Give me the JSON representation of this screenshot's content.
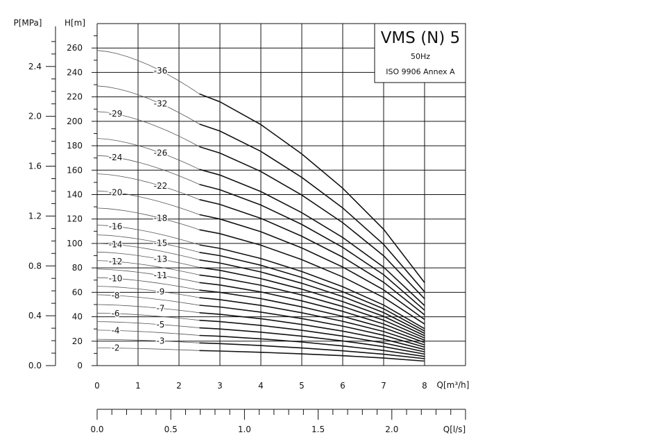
{
  "chart_data": {
    "type": "line",
    "title_box": {
      "model": "VMS (N) 5",
      "frequency": "50Hz",
      "standard": "ISO 9906 Annex A"
    },
    "axes": {
      "head": {
        "label": "H[m]",
        "range": [
          0,
          280
        ],
        "major_ticks": [
          0,
          20,
          40,
          60,
          80,
          100,
          120,
          140,
          160,
          180,
          200,
          220,
          240,
          260
        ]
      },
      "pressure": {
        "label": "P[MPa]",
        "range": [
          0,
          2.744
        ],
        "major_ticks": [
          "0.0",
          "0.4",
          "0.8",
          "1.2",
          "1.6",
          "2.0",
          "2.4"
        ]
      },
      "flow_m3h": {
        "label": "Q[m³/h]",
        "range": [
          0,
          9
        ],
        "major_ticks": [
          0,
          1,
          2,
          3,
          4,
          5,
          6,
          7,
          8
        ]
      },
      "flow_ls": {
        "label": "Q[l/s]",
        "range": [
          0,
          2.5
        ],
        "major_ticks": [
          "0.0",
          "0.5",
          "1.0",
          "1.5",
          "2.0"
        ]
      }
    },
    "grid": true,
    "x": [
      0,
      2.5,
      3,
      4,
      5,
      6,
      7,
      8
    ],
    "series": [
      {
        "name": "-2",
        "values": [
          14.5,
          12.3,
          11.9,
          10.9,
          9.6,
          8.1,
          6.2,
          3.7
        ]
      },
      {
        "name": "-3",
        "values": [
          21.5,
          18.6,
          18.0,
          16.4,
          14.4,
          12.1,
          9.3,
          5.7
        ]
      },
      {
        "name": "-4",
        "values": [
          29,
          24.7,
          24.0,
          21.9,
          19.3,
          16.1,
          12.4,
          7.5
        ]
      },
      {
        "name": "-5",
        "values": [
          36,
          30.9,
          30.0,
          27.4,
          24.1,
          20.2,
          15.5,
          9.4
        ]
      },
      {
        "name": "-6",
        "values": [
          43,
          37.1,
          36.0,
          32.9,
          28.9,
          24.2,
          18.6,
          11.3
        ]
      },
      {
        "name": "-7",
        "values": [
          50,
          43.3,
          42.0,
          38.4,
          33.7,
          28.2,
          21.7,
          13.2
        ]
      },
      {
        "name": "-8",
        "values": [
          58,
          49.4,
          48.0,
          43.8,
          38.5,
          32.3,
          24.8,
          15.1
        ]
      },
      {
        "name": "-9",
        "values": [
          65,
          55.6,
          54.0,
          49.3,
          43.3,
          36.3,
          27.9,
          17.0
        ]
      },
      {
        "name": "-10",
        "values": [
          72,
          61.8,
          60.0,
          54.8,
          48.1,
          40.3,
          31.0,
          18.9
        ]
      },
      {
        "name": "-11",
        "values": [
          79,
          68.0,
          66.0,
          60.3,
          53.0,
          44.4,
          34.1,
          20.8
        ]
      },
      {
        "name": "-12",
        "values": [
          86,
          74.2,
          72.0,
          65.8,
          57.8,
          48.4,
          37.2,
          22.6
        ]
      },
      {
        "name": "-13",
        "values": [
          93,
          80.3,
          78.0,
          71.2,
          62.6,
          52.4,
          40.3,
          24.5
        ]
      },
      {
        "name": "-14",
        "values": [
          100,
          86.5,
          84.0,
          76.7,
          67.4,
          56.5,
          43.4,
          26.4
        ]
      },
      {
        "name": "-15",
        "values": [
          107,
          92.7,
          90.0,
          82.2,
          72.2,
          60.5,
          46.5,
          28.3
        ]
      },
      {
        "name": "-16",
        "values": [
          115,
          98.8,
          96.0,
          87.7,
          77.0,
          64.6,
          49.6,
          30.2
        ]
      },
      {
        "name": "-18",
        "values": [
          129,
          111.2,
          108.0,
          98.6,
          86.7,
          72.6,
          55.8,
          34.0
        ]
      },
      {
        "name": "-20",
        "values": [
          143,
          123.6,
          120.0,
          109.6,
          96.3,
          80.7,
          62.0,
          37.7
        ]
      },
      {
        "name": "-22",
        "values": [
          157,
          135.9,
          132.0,
          120.6,
          105.9,
          88.8,
          68.2,
          41.5
        ]
      },
      {
        "name": "-24",
        "values": [
          172,
          148.3,
          144.0,
          131.5,
          115.6,
          96.8,
          74.4,
          45.3
        ]
      },
      {
        "name": "-26",
        "values": [
          186,
          160.6,
          156.0,
          142.5,
          125.2,
          104.9,
          80.6,
          49.1
        ]
      },
      {
        "name": "-29",
        "values": [
          208,
          179.2,
          174.0,
          158.9,
          139.6,
          117.0,
          89.9,
          54.7
        ]
      },
      {
        "name": "-32",
        "values": [
          229,
          197.7,
          192.0,
          175.4,
          154.1,
          129.1,
          99.2,
          60.4
        ]
      },
      {
        "name": "-36",
        "values": [
          258,
          222.4,
          216.0,
          197.3,
          173.3,
          145.2,
          111.6,
          67.9
        ]
      }
    ]
  }
}
